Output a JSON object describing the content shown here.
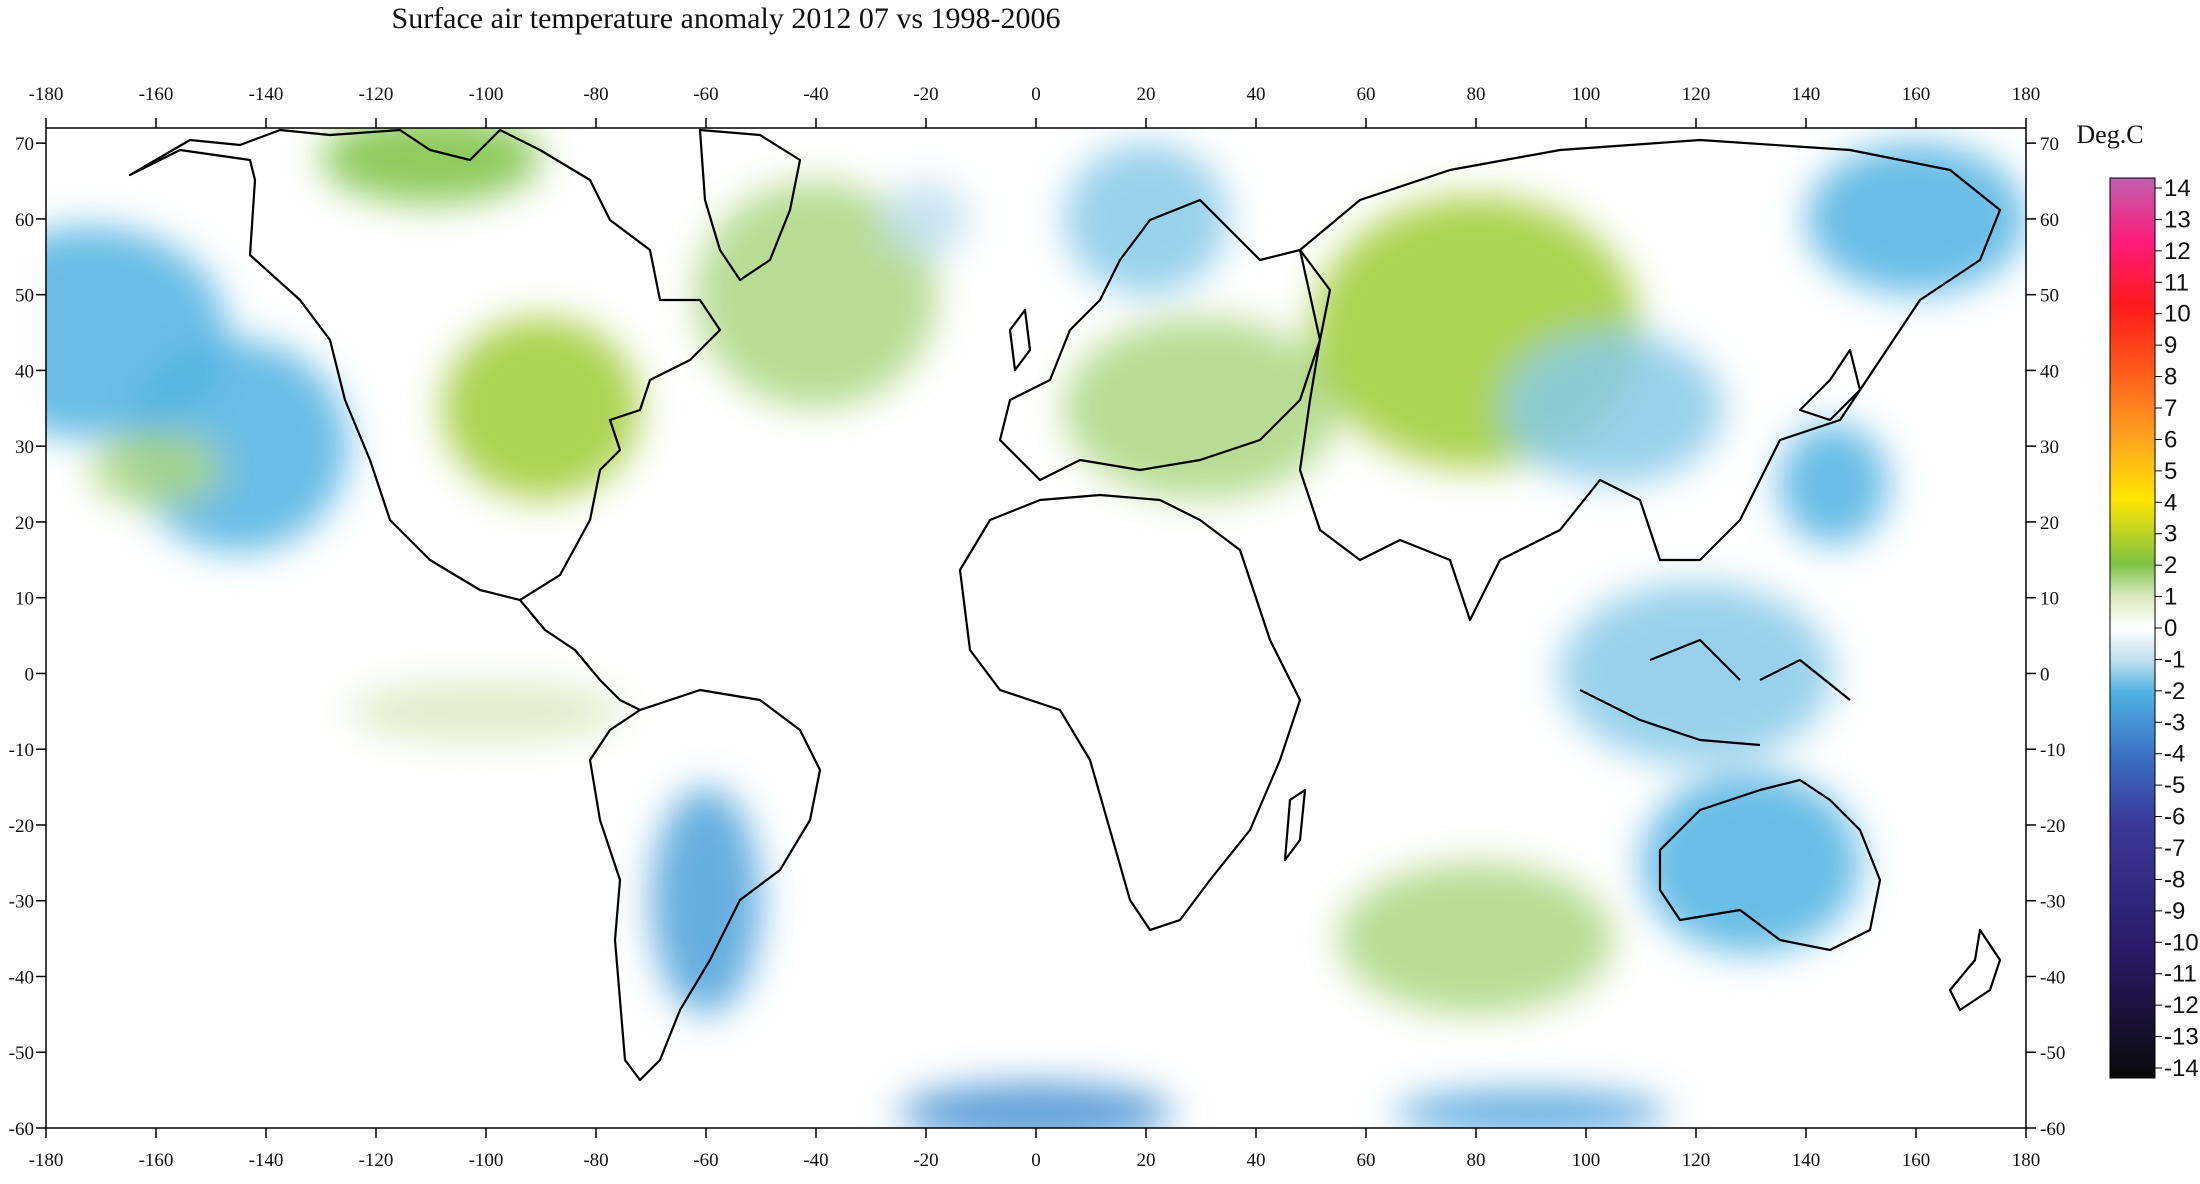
{
  "title": "Surface air temperature anomaly 2012 07 vs 1998-2006",
  "map": {
    "lon_ticks": [
      -180,
      -160,
      -140,
      -120,
      -100,
      -80,
      -60,
      -40,
      -20,
      0,
      20,
      40,
      60,
      80,
      100,
      120,
      140,
      160,
      180
    ],
    "lat_ticks": [
      70,
      60,
      50,
      40,
      30,
      20,
      10,
      0,
      -10,
      -20,
      -30,
      -40,
      -50,
      -60
    ],
    "lon_range": [
      -180,
      180
    ],
    "lat_range": [
      -60,
      72
    ],
    "background_color": "#ffffff",
    "coastline_color": "#000000",
    "anomaly_blobs": [
      {
        "lon": -172,
        "lat": 45,
        "rlon": 25,
        "rlat": 14,
        "value": -2
      },
      {
        "lon": -145,
        "lat": 30,
        "rlon": 20,
        "rlat": 14,
        "value": -2
      },
      {
        "lon": -160,
        "lat": 27,
        "rlon": 12,
        "rlat": 5,
        "value": 1.5
      },
      {
        "lon": -110,
        "lat": 68,
        "rlon": 20,
        "rlat": 6,
        "value": 2
      },
      {
        "lon": -90,
        "lat": 35,
        "rlon": 18,
        "rlat": 12,
        "value": 2.5
      },
      {
        "lon": -40,
        "lat": 50,
        "rlon": 22,
        "rlat": 15,
        "value": 1.5
      },
      {
        "lon": -20,
        "lat": 60,
        "rlon": 8,
        "rlat": 5,
        "value": -1
      },
      {
        "lon": 20,
        "lat": 60,
        "rlon": 15,
        "rlat": 10,
        "value": -1.5
      },
      {
        "lon": 30,
        "lat": 35,
        "rlon": 25,
        "rlat": 12,
        "value": 1.5
      },
      {
        "lon": 80,
        "lat": 45,
        "rlon": 30,
        "rlat": 18,
        "value": 2.5
      },
      {
        "lon": 105,
        "lat": 35,
        "rlon": 20,
        "rlat": 10,
        "value": -1.5
      },
      {
        "lon": 120,
        "lat": 0,
        "rlon": 25,
        "rlat": 12,
        "value": -1.5
      },
      {
        "lon": 130,
        "lat": -25,
        "rlon": 20,
        "rlat": 12,
        "value": -2
      },
      {
        "lon": -60,
        "lat": -30,
        "rlon": 10,
        "rlat": 15,
        "value": -2.5
      },
      {
        "lon": -100,
        "lat": -5,
        "rlon": 25,
        "rlat": 4,
        "value": 1
      },
      {
        "lon": 80,
        "lat": -35,
        "rlon": 25,
        "rlat": 10,
        "value": 1.5
      },
      {
        "lon": 0,
        "lat": -58,
        "rlon": 25,
        "rlat": 4,
        "value": -3
      },
      {
        "lon": 90,
        "lat": -58,
        "rlon": 25,
        "rlat": 3,
        "value": -2.5
      },
      {
        "lon": 160,
        "lat": 60,
        "rlon": 20,
        "rlat": 10,
        "value": -2
      },
      {
        "lon": 145,
        "lat": 25,
        "rlon": 10,
        "rlat": 8,
        "value": -2
      }
    ]
  },
  "colorbar": {
    "unit": "Deg.C",
    "labels": [
      "14",
      "13",
      "12",
      "11",
      "10",
      "9",
      "8",
      "7",
      "6",
      "5",
      "4",
      "3",
      "2",
      "1",
      "0",
      "-1",
      "-2",
      "-3",
      "-4",
      "-5",
      "-6",
      "-7",
      "-8",
      "-9",
      "-10",
      "-11",
      "-12",
      "-13",
      "-14"
    ],
    "stops": [
      {
        "v": 14,
        "c": "#c060b0"
      },
      {
        "v": 12,
        "c": "#ff1a7a"
      },
      {
        "v": 10,
        "c": "#ff1a1a"
      },
      {
        "v": 8,
        "c": "#ff5a1a"
      },
      {
        "v": 6,
        "c": "#ffa020"
      },
      {
        "v": 4,
        "c": "#ffe600"
      },
      {
        "v": 2,
        "c": "#7dc242"
      },
      {
        "v": 1,
        "c": "#d9eabf"
      },
      {
        "v": 0,
        "c": "#ffffff"
      },
      {
        "v": -1,
        "c": "#bfe0ee"
      },
      {
        "v": -2,
        "c": "#4fb2e3"
      },
      {
        "v": -4,
        "c": "#3a6fc4"
      },
      {
        "v": -6,
        "c": "#3b3a9a"
      },
      {
        "v": -10,
        "c": "#2a1a6a"
      },
      {
        "v": -14,
        "c": "#0a0a0a"
      }
    ]
  }
}
